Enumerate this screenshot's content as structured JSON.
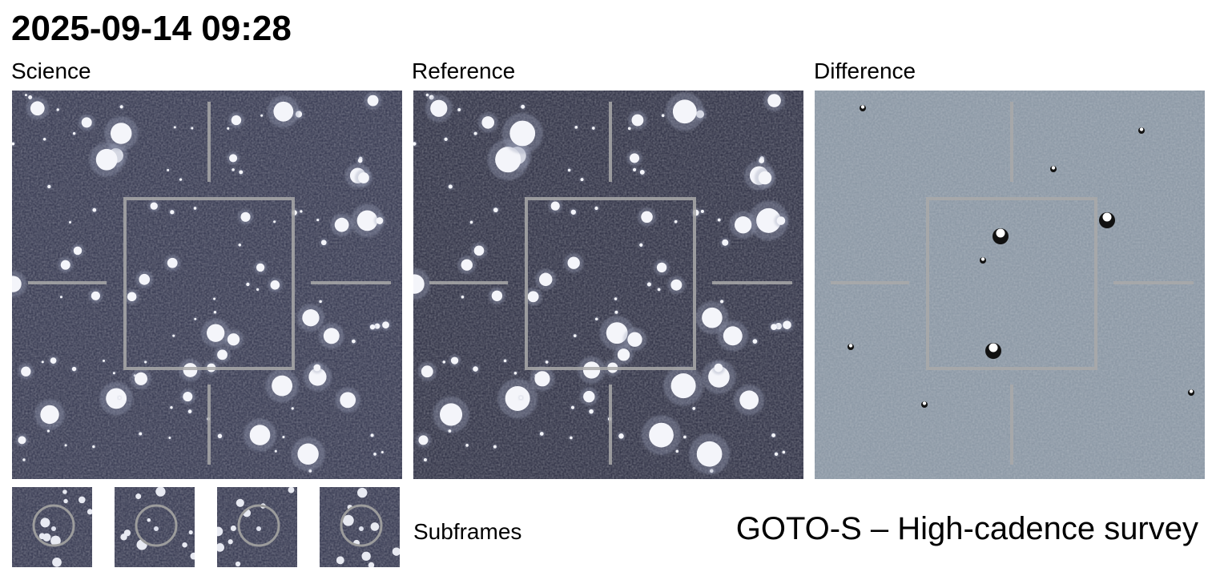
{
  "header": {
    "title": "2025-09-14 09:28"
  },
  "panels": [
    {
      "label": "Science"
    },
    {
      "label": "Reference"
    },
    {
      "label": "Difference"
    }
  ],
  "subframes": {
    "label": "Subframes"
  },
  "footer": {
    "survey": "GOTO-S – High-cadence survey"
  }
}
